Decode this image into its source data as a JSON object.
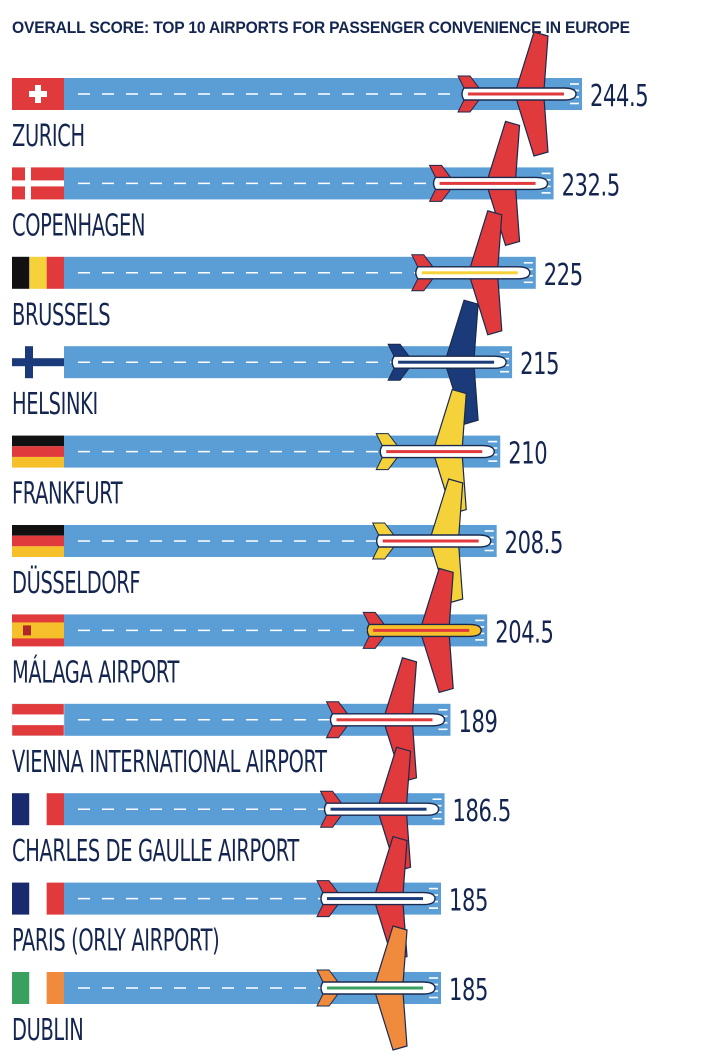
{
  "chart_data": {
    "type": "bar",
    "title": "OVERALL SCORE: TOP 10 AIRPORTS FOR PASSENGER CONVENIENCE IN EUROPE",
    "categories": [
      "ZURICH",
      "COPENHAGEN",
      "BRUSSELS",
      "HELSINKI",
      "FRANKFURT",
      "DÜSSELDORF",
      "MÁLAGA AIRPORT",
      "VIENNA INTERNATIONAL AIRPORT",
      "CHARLES DE GAULLE AIRPORT",
      "PARIS (ORLY AIRPORT)",
      "DUBLIN"
    ],
    "values": [
      244.5,
      232.5,
      225,
      215,
      210,
      208.5,
      204.5,
      189,
      186.5,
      185,
      185
    ],
    "value_labels": [
      "244.5",
      "232.5",
      "225",
      "215",
      "210",
      "208.5",
      "204.5",
      "189",
      "186.5",
      "185",
      "185"
    ],
    "xlabel": "",
    "ylabel": "",
    "colors": {
      "runway": "#5b9ed6",
      "runway_line": "#ffffff",
      "text": "#14254f"
    },
    "flags": [
      [
        "switzerland-flag"
      ],
      [
        "denmark-flag"
      ],
      [
        "belgium-flag"
      ],
      [
        "finland-flag"
      ],
      [
        "germany-flag"
      ],
      [
        "germany-flag"
      ],
      [
        "spain-flag"
      ],
      [
        "austria-flag"
      ],
      [
        "france-flag"
      ],
      [
        "france-flag"
      ],
      [
        "ireland-flag"
      ]
    ],
    "planes": [
      {
        "body": "#ffffff",
        "stripe": "#e03a3c",
        "wing": "#e03a3c",
        "outline": "#1a2a4e"
      },
      {
        "body": "#ffffff",
        "stripe": "#e03a3c",
        "wing": "#e03a3c",
        "outline": "#1a2a4e"
      },
      {
        "body": "#ffffff",
        "stripe": "#f5d23a",
        "wing": "#e03a3c",
        "outline": "#1a2a4e"
      },
      {
        "body": "#ffffff",
        "stripe": "#1a3a7a",
        "wing": "#1a3a7a",
        "outline": "#1a2a4e"
      },
      {
        "body": "#ffffff",
        "stripe": "#e03a3c",
        "wing": "#f5d23a",
        "outline": "#1a2a4e"
      },
      {
        "body": "#ffffff",
        "stripe": "#e03a3c",
        "wing": "#f5d23a",
        "outline": "#1a2a4e"
      },
      {
        "body": "#f5c02a",
        "stripe": "#e03a3c",
        "wing": "#e03a3c",
        "outline": "#1a2a4e"
      },
      {
        "body": "#ffffff",
        "stripe": "#e03a3c",
        "wing": "#e03a3c",
        "outline": "#1a2a4e"
      },
      {
        "body": "#ffffff",
        "stripe": "#1a3a7a",
        "wing": "#e03a3c",
        "outline": "#1a2a4e"
      },
      {
        "body": "#ffffff",
        "stripe": "#1a3a7a",
        "wing": "#e03a3c",
        "outline": "#1a2a4e"
      },
      {
        "body": "#ffffff",
        "stripe": "#3aa060",
        "wing": "#f08a3c",
        "outline": "#1a2a4e"
      }
    ]
  }
}
